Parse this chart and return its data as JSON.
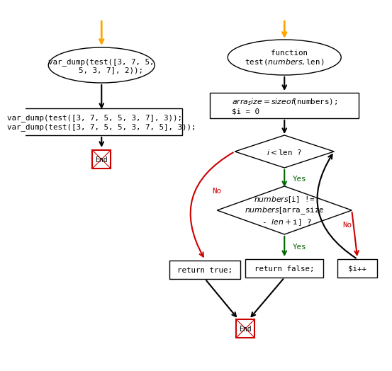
{
  "bg_color": "#ffffff",
  "col_orange": "#FFA500",
  "col_black": "#000000",
  "col_red": "#cc0000",
  "col_green": "#006400",
  "font_size": 7.8,
  "font_family": "DejaVu Sans Mono",
  "left_ellipse_text": "var_dump(test([3, 7, 5,\n    5, 3, 7], 2));",
  "left_rect_text": "var_dump(test([3, 7, 5, 5, 3, 7], 3));\nvar_dump(test([3, 7, 5, 5, 3, 7, 5], 3));",
  "right_ellipse_text": "  function\ntest($numbers, $len)",
  "right_rect1_text": "$arra_size = sizeof($numbers);\n$i = 0",
  "right_diamond1_text": "$i < $len ?",
  "right_diamond2_text": "$numbers[$i] !=\n$numbers[$arra_size\n - $len + $i] ?",
  "right_rect_true_text": "return true;",
  "right_rect_false_text": "return false;",
  "right_rect_inc_text": "$i++",
  "no_label": "No",
  "yes_label": "Yes"
}
